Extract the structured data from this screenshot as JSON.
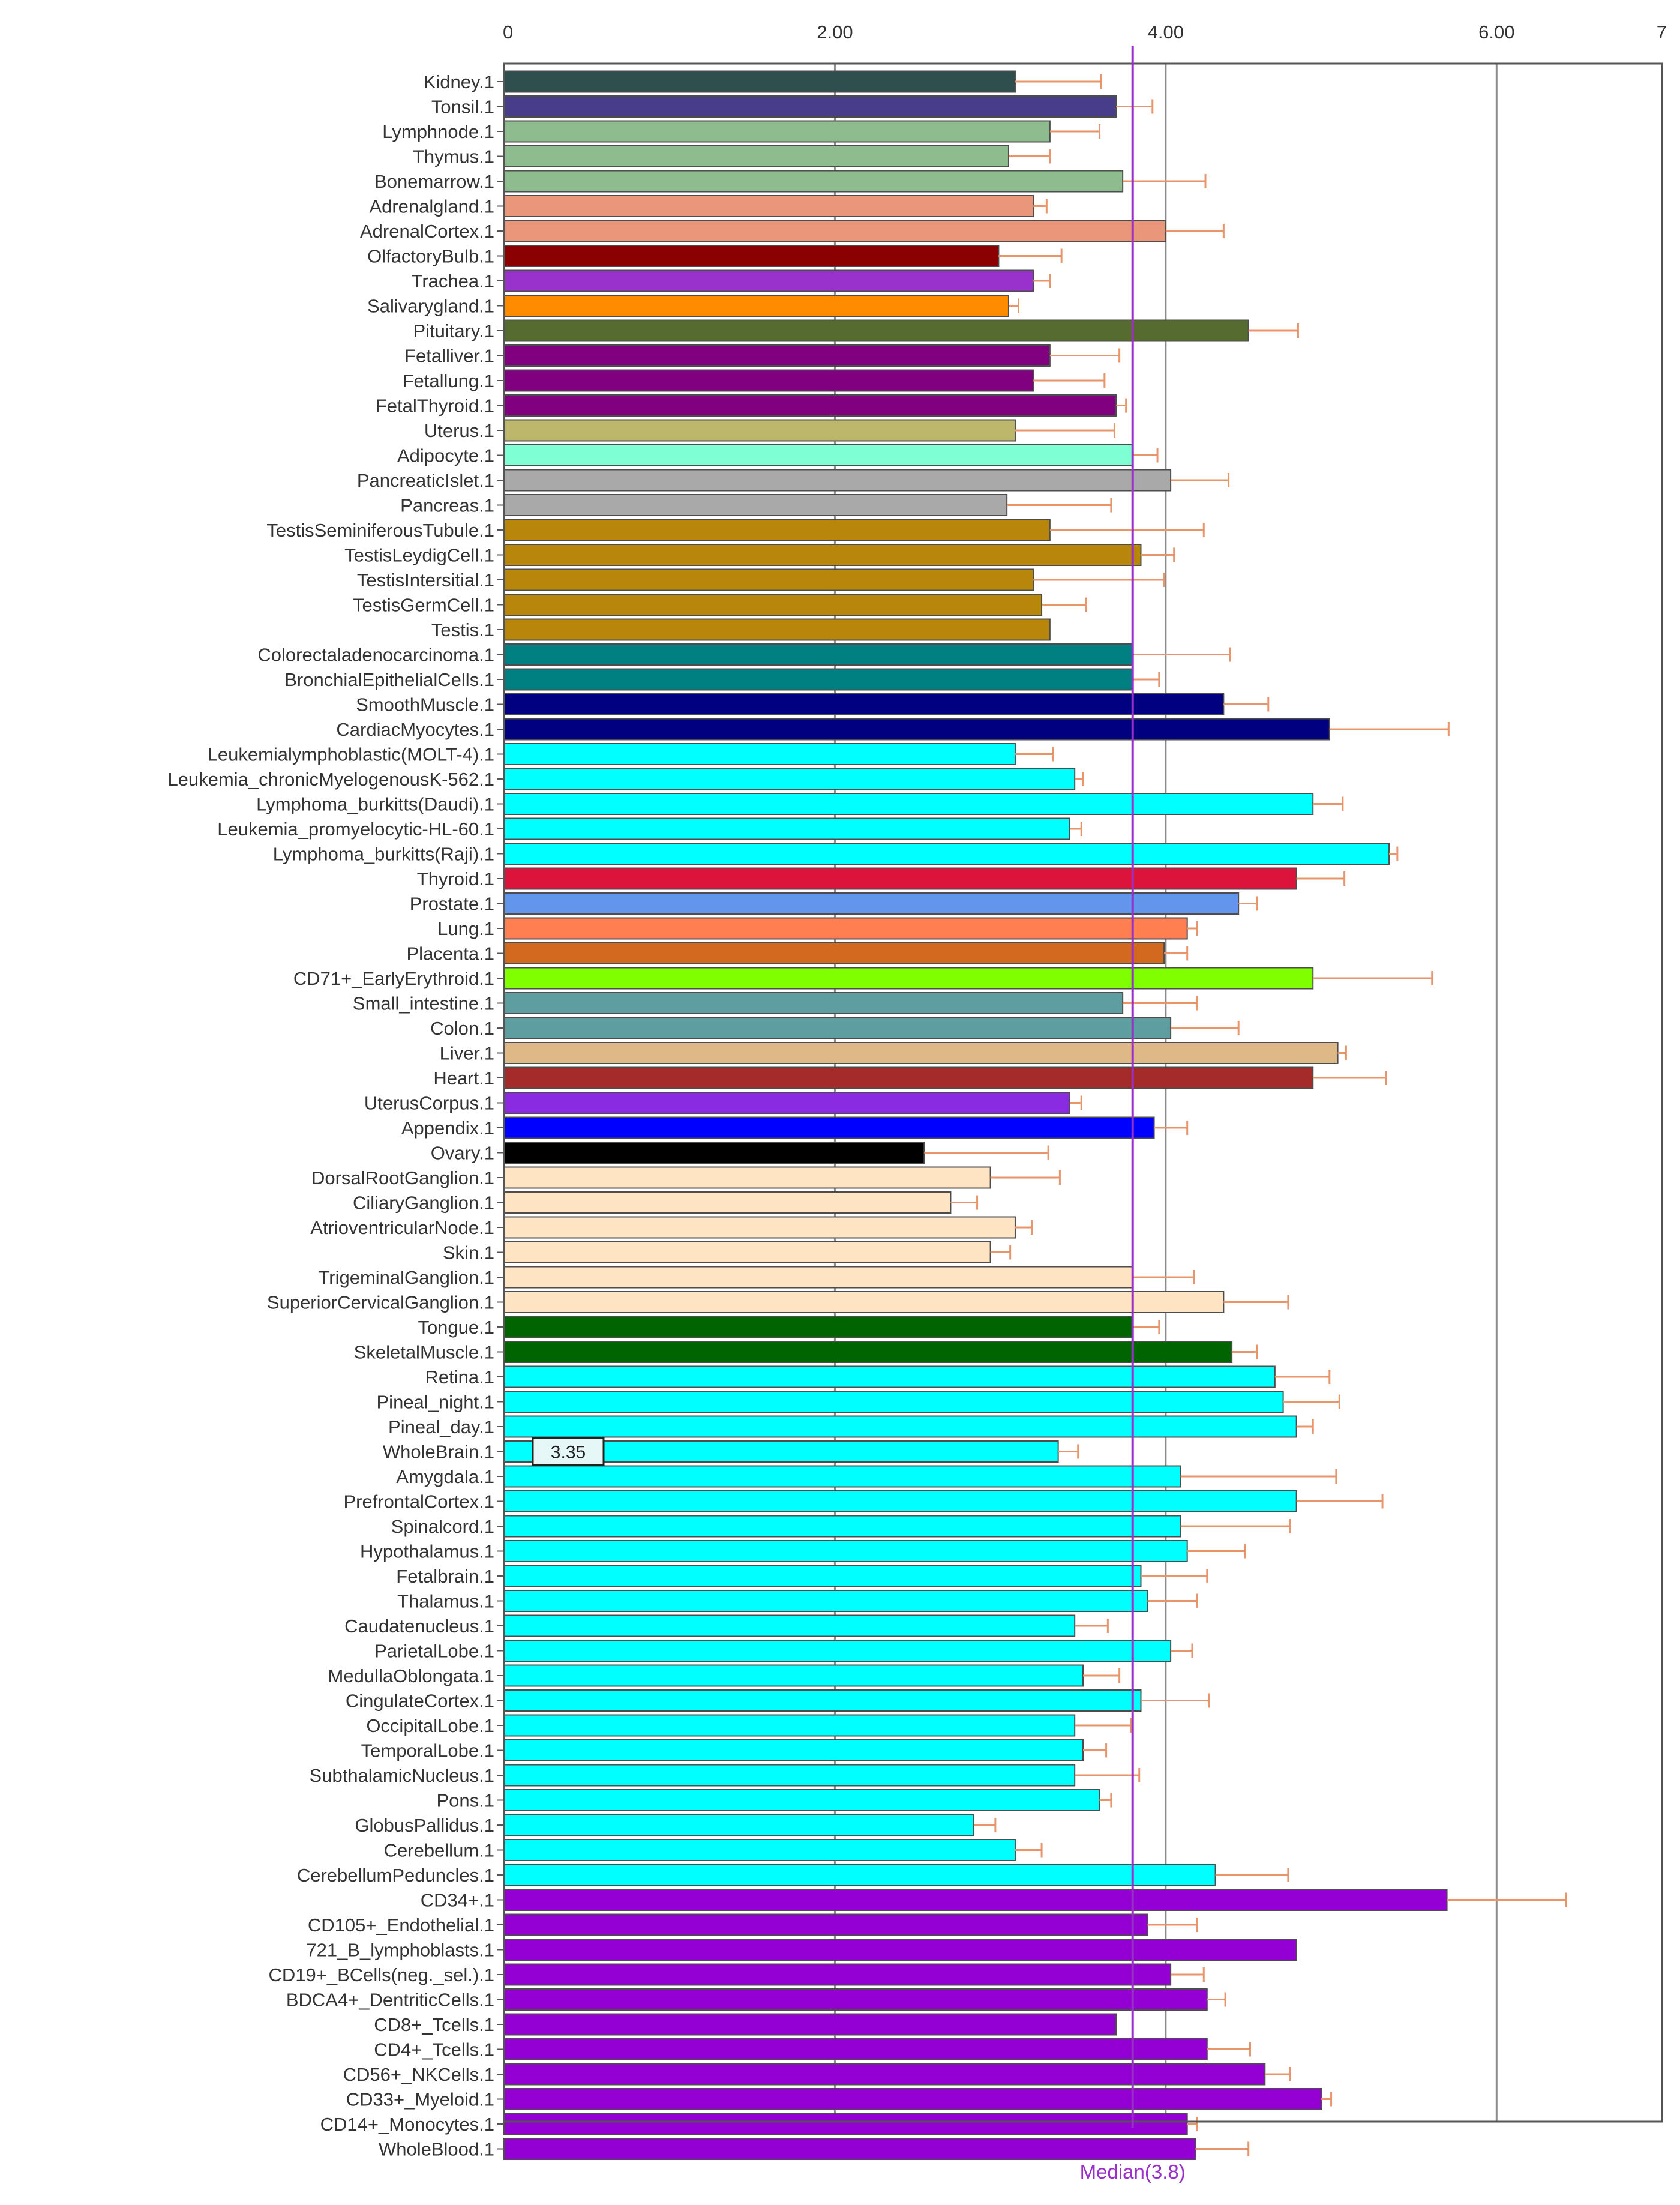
{
  "chart_data": {
    "type": "bar",
    "orientation": "horizontal",
    "xlim": [
      0,
      7
    ],
    "x_ticks": [
      {
        "value": 0,
        "label": "0"
      },
      {
        "value": 2,
        "label": "2.00"
      },
      {
        "value": 4,
        "label": "4.00"
      },
      {
        "value": 6,
        "label": "6.00"
      },
      {
        "value": 7,
        "label": "7"
      }
    ],
    "gridlines_at": [
      2,
      4,
      6
    ],
    "median": {
      "value": 3.8,
      "label": "Median(3.8)",
      "color": "#9b2fc9"
    },
    "tooltip": {
      "category": "WholeBrain.1",
      "label": "3.35"
    },
    "error_bar_color": "#e8956b",
    "bars": [
      {
        "label": "Kidney.1",
        "value": 3.09,
        "err": 0.52,
        "color": "#2f4f4f"
      },
      {
        "label": "Tonsil.1",
        "value": 3.7,
        "err": 0.22,
        "color": "#483d8b"
      },
      {
        "label": "Lymphnode.1",
        "value": 3.3,
        "err": 0.3,
        "color": "#8fbc8f"
      },
      {
        "label": "Thymus.1",
        "value": 3.05,
        "err": 0.25,
        "color": "#8fbc8f"
      },
      {
        "label": "Bonemarrow.1",
        "value": 3.74,
        "err": 0.5,
        "color": "#8fbc8f"
      },
      {
        "label": "Adrenalgland.1",
        "value": 3.2,
        "err": 0.08,
        "color": "#e9967a"
      },
      {
        "label": "AdrenalCortex.1",
        "value": 4.0,
        "err": 0.35,
        "color": "#e9967a"
      },
      {
        "label": "OlfactoryBulb.1",
        "value": 2.99,
        "err": 0.38,
        "color": "#8b0000"
      },
      {
        "label": "Trachea.1",
        "value": 3.2,
        "err": 0.1,
        "color": "#9932cc"
      },
      {
        "label": "Salivarygland.1",
        "value": 3.05,
        "err": 0.06,
        "color": "#ff8c00"
      },
      {
        "label": "Pituitary.1",
        "value": 4.5,
        "err": 0.3,
        "color": "#556b2f"
      },
      {
        "label": "Fetalliver.1",
        "value": 3.3,
        "err": 0.42,
        "color": "#800080"
      },
      {
        "label": "Fetallung.1",
        "value": 3.2,
        "err": 0.43,
        "color": "#800080"
      },
      {
        "label": "FetalThyroid.1",
        "value": 3.7,
        "err": 0.06,
        "color": "#800080"
      },
      {
        "label": "Uterus.1",
        "value": 3.09,
        "err": 0.6,
        "color": "#bdb76b"
      },
      {
        "label": "Adipocyte.1",
        "value": 3.8,
        "err": 0.15,
        "color": "#7fffd4"
      },
      {
        "label": "PancreaticIslet.1",
        "value": 4.03,
        "err": 0.35,
        "color": "#a9a9a9"
      },
      {
        "label": "Pancreas.1",
        "value": 3.04,
        "err": 0.63,
        "color": "#a9a9a9"
      },
      {
        "label": "TestisSeminiferousTubule.1",
        "value": 3.3,
        "err": 0.93,
        "color": "#b8860b"
      },
      {
        "label": "TestisLeydigCell.1",
        "value": 3.85,
        "err": 0.2,
        "color": "#b8860b"
      },
      {
        "label": "TestisIntersitial.1",
        "value": 3.2,
        "err": 0.79,
        "color": "#b8860b"
      },
      {
        "label": "TestisGermCell.1",
        "value": 3.25,
        "err": 0.27,
        "color": "#b8860b"
      },
      {
        "label": "Testis.1",
        "value": 3.3,
        "err": 0.0,
        "color": "#b8860b"
      },
      {
        "label": "Colorectaladenocarcinoma.1",
        "value": 3.8,
        "err": 0.59,
        "color": "#008080"
      },
      {
        "label": "BronchialEpithelialCells.1",
        "value": 3.8,
        "err": 0.16,
        "color": "#008080"
      },
      {
        "label": "SmoothMuscle.1",
        "value": 4.35,
        "err": 0.27,
        "color": "#000080"
      },
      {
        "label": "CardiacMyocytes.1",
        "value": 4.99,
        "err": 0.72,
        "color": "#000080"
      },
      {
        "label": "Leukemialymphoblastic(MOLT-4).1",
        "value": 3.09,
        "err": 0.23,
        "color": "#00ffff"
      },
      {
        "label": "Leukemia_chronicMyelogenousK-562.1",
        "value": 3.45,
        "err": 0.05,
        "color": "#00ffff"
      },
      {
        "label": "Lymphoma_burkitts(Daudi).1",
        "value": 4.89,
        "err": 0.18,
        "color": "#00ffff"
      },
      {
        "label": "Leukemia_promyelocytic-HL-60.1",
        "value": 3.42,
        "err": 0.07,
        "color": "#00ffff"
      },
      {
        "label": "Lymphoma_burkitts(Raji).1",
        "value": 5.35,
        "err": 0.05,
        "color": "#00ffff"
      },
      {
        "label": "Thyroid.1",
        "value": 4.79,
        "err": 0.29,
        "color": "#dc143c"
      },
      {
        "label": "Prostate.1",
        "value": 4.44,
        "err": 0.11,
        "color": "#6495ed"
      },
      {
        "label": "Lung.1",
        "value": 4.13,
        "err": 0.06,
        "color": "#ff7f50"
      },
      {
        "label": "Placenta.1",
        "value": 3.99,
        "err": 0.14,
        "color": "#d2691e"
      },
      {
        "label": "CD71+_EarlyErythroid.1",
        "value": 4.89,
        "err": 0.72,
        "color": "#7fff00"
      },
      {
        "label": "Small_intestine.1",
        "value": 3.74,
        "err": 0.45,
        "color": "#5f9ea0"
      },
      {
        "label": "Colon.1",
        "value": 4.03,
        "err": 0.41,
        "color": "#5f9ea0"
      },
      {
        "label": "Liver.1",
        "value": 5.04,
        "err": 0.05,
        "color": "#deb887"
      },
      {
        "label": "Heart.1",
        "value": 4.89,
        "err": 0.44,
        "color": "#a52a2a"
      },
      {
        "label": "UterusCorpus.1",
        "value": 3.42,
        "err": 0.07,
        "color": "#8a2be2"
      },
      {
        "label": "Appendix.1",
        "value": 3.93,
        "err": 0.2,
        "color": "#0000ff"
      },
      {
        "label": "Ovary.1",
        "value": 2.54,
        "err": 0.75,
        "color": "#000000"
      },
      {
        "label": "DorsalRootGanglion.1",
        "value": 2.94,
        "err": 0.42,
        "color": "#ffe4c4"
      },
      {
        "label": "CiliaryGanglion.1",
        "value": 2.7,
        "err": 0.16,
        "color": "#ffe4c4"
      },
      {
        "label": "AtrioventricularNode.1",
        "value": 3.09,
        "err": 0.1,
        "color": "#ffe4c4"
      },
      {
        "label": "Skin.1",
        "value": 2.94,
        "err": 0.12,
        "color": "#ffe4c4"
      },
      {
        "label": "TrigeminalGanglion.1",
        "value": 3.8,
        "err": 0.37,
        "color": "#ffe4c4"
      },
      {
        "label": "SuperiorCervicalGanglion.1",
        "value": 4.35,
        "err": 0.39,
        "color": "#ffe4c4"
      },
      {
        "label": "Tongue.1",
        "value": 3.8,
        "err": 0.16,
        "color": "#006400"
      },
      {
        "label": "SkeletalMuscle.1",
        "value": 4.4,
        "err": 0.15,
        "color": "#006400"
      },
      {
        "label": "Retina.1",
        "value": 4.66,
        "err": 0.33,
        "color": "#00ffff"
      },
      {
        "label": "Pineal_night.1",
        "value": 4.71,
        "err": 0.34,
        "color": "#00ffff"
      },
      {
        "label": "Pineal_day.1",
        "value": 4.79,
        "err": 0.1,
        "color": "#00ffff"
      },
      {
        "label": "WholeBrain.1",
        "value": 3.35,
        "err": 0.12,
        "color": "#00ffff"
      },
      {
        "label": "Amygdala.1",
        "value": 4.09,
        "err": 0.94,
        "color": "#00ffff"
      },
      {
        "label": "PrefrontalCortex.1",
        "value": 4.79,
        "err": 0.52,
        "color": "#00ffff"
      },
      {
        "label": "Spinalcord.1",
        "value": 4.09,
        "err": 0.66,
        "color": "#00ffff"
      },
      {
        "label": "Hypothalamus.1",
        "value": 4.13,
        "err": 0.35,
        "color": "#00ffff"
      },
      {
        "label": "Fetalbrain.1",
        "value": 3.85,
        "err": 0.4,
        "color": "#00ffff"
      },
      {
        "label": "Thalamus.1",
        "value": 3.89,
        "err": 0.3,
        "color": "#00ffff"
      },
      {
        "label": "Caudatenucleus.1",
        "value": 3.45,
        "err": 0.2,
        "color": "#00ffff"
      },
      {
        "label": "ParietalLobe.1",
        "value": 4.03,
        "err": 0.13,
        "color": "#00ffff"
      },
      {
        "label": "MedullaOblongata.1",
        "value": 3.5,
        "err": 0.22,
        "color": "#00ffff"
      },
      {
        "label": "CingulateCortex.1",
        "value": 3.85,
        "err": 0.41,
        "color": "#00ffff"
      },
      {
        "label": "OccipitalLobe.1",
        "value": 3.45,
        "err": 0.34,
        "color": "#00ffff"
      },
      {
        "label": "TemporalLobe.1",
        "value": 3.5,
        "err": 0.14,
        "color": "#00ffff"
      },
      {
        "label": "SubthalamicNucleus.1",
        "value": 3.45,
        "err": 0.39,
        "color": "#00ffff"
      },
      {
        "label": "Pons.1",
        "value": 3.6,
        "err": 0.07,
        "color": "#00ffff"
      },
      {
        "label": "GlobusPallidus.1",
        "value": 2.84,
        "err": 0.13,
        "color": "#00ffff"
      },
      {
        "label": "Cerebellum.1",
        "value": 3.09,
        "err": 0.16,
        "color": "#00ffff"
      },
      {
        "label": "CerebellumPeduncles.1",
        "value": 4.3,
        "err": 0.44,
        "color": "#00ffff"
      },
      {
        "label": "CD34+.1",
        "value": 5.7,
        "err": 0.72,
        "color": "#9400d3"
      },
      {
        "label": "CD105+_Endothelial.1",
        "value": 3.89,
        "err": 0.3,
        "color": "#9400d3"
      },
      {
        "label": "721_B_lymphoblasts.1",
        "value": 4.79,
        "err": 0.0,
        "color": "#9400d3"
      },
      {
        "label": "CD19+_BCells(neg._sel.).1",
        "value": 4.03,
        "err": 0.2,
        "color": "#9400d3"
      },
      {
        "label": "BDCA4+_DentriticCells.1",
        "value": 4.25,
        "err": 0.11,
        "color": "#9400d3"
      },
      {
        "label": "CD8+_Tcells.1",
        "value": 3.7,
        "err": 0.0,
        "color": "#9400d3"
      },
      {
        "label": "CD4+_Tcells.1",
        "value": 4.25,
        "err": 0.26,
        "color": "#9400d3"
      },
      {
        "label": "CD56+_NKCells.1",
        "value": 4.6,
        "err": 0.15,
        "color": "#9400d3"
      },
      {
        "label": "CD33+_Myeloid.1",
        "value": 4.94,
        "err": 0.06,
        "color": "#9400d3"
      },
      {
        "label": "CD14+_Monocytes.1",
        "value": 4.13,
        "err": 0.06,
        "color": "#9400d3"
      },
      {
        "label": "WholeBlood.1",
        "value": 4.18,
        "err": 0.32,
        "color": "#9400d3"
      }
    ]
  }
}
